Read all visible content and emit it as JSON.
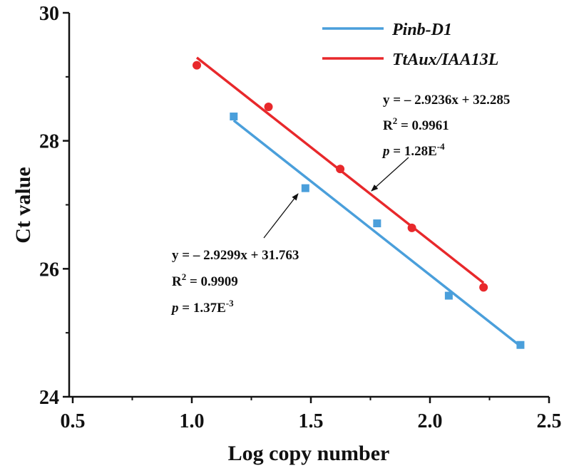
{
  "chart_data": {
    "type": "scatter",
    "title": "",
    "xlabel": "Log copy number",
    "ylabel": "Ct value",
    "xlim": [
      0.5,
      2.5
    ],
    "ylim": [
      24,
      30
    ],
    "xticks": [
      "0.5",
      "1.0",
      "1.5",
      "2.0",
      "2.5"
    ],
    "yticks": [
      "24",
      "26",
      "28",
      "30"
    ],
    "legend_position": "top-right",
    "series": [
      {
        "name": "Pinb-D1",
        "color": "#4A9FDB",
        "marker": "square",
        "x": [
          1.176,
          1.477,
          1.778,
          2.079,
          2.38
        ],
        "y": [
          28.38,
          27.26,
          26.71,
          25.58,
          24.81
        ],
        "fit": {
          "slope": -2.9299,
          "intercept": 31.763,
          "x_range": [
            1.176,
            2.38
          ]
        },
        "equation": "y = – 2.9299x + 31.763",
        "r2_prefix": "R",
        "r2_sup": "2",
        "r2_value": " = 0.9909",
        "p_symbol": "p",
        "p_value": " = 1.37E",
        "p_exp": "-3"
      },
      {
        "name": "TtAux/IAA13L",
        "color": "#E8282B",
        "marker": "circle",
        "x": [
          1.021,
          1.322,
          1.623,
          1.924,
          2.225
        ],
        "y": [
          29.18,
          28.53,
          27.56,
          26.64,
          25.71
        ],
        "fit": {
          "slope": -2.9236,
          "intercept": 32.285,
          "x_range": [
            1.021,
            2.225
          ]
        },
        "equation": "y = – 2.9236x + 32.285",
        "r2_prefix": "R",
        "r2_sup": "2",
        "r2_value": " = 0.9961",
        "p_symbol": "p",
        "p_value": " = 1.28E",
        "p_exp": "-4"
      }
    ]
  }
}
